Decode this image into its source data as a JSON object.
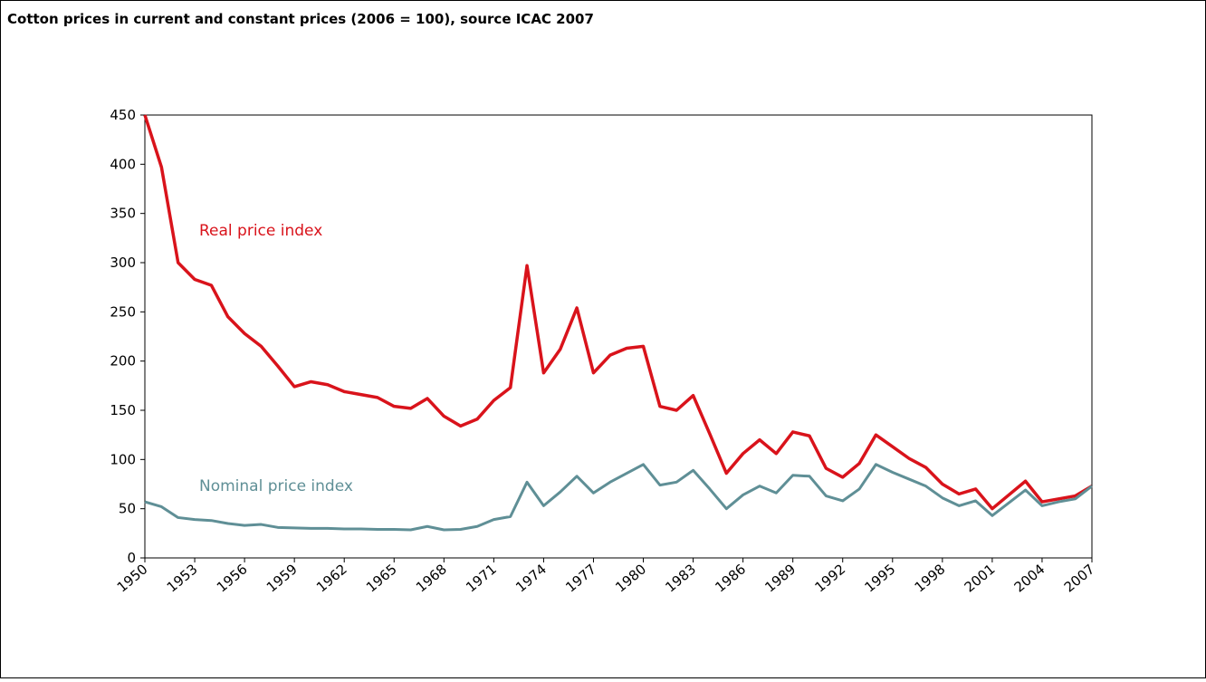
{
  "chart_data": {
    "type": "line",
    "title": "Cotton prices in current and constant prices (2006 = 100), source ICAC 2007",
    "x": [
      1950,
      1951,
      1952,
      1953,
      1954,
      1955,
      1956,
      1957,
      1958,
      1959,
      1960,
      1961,
      1962,
      1963,
      1964,
      1965,
      1966,
      1967,
      1968,
      1969,
      1970,
      1971,
      1972,
      1973,
      1974,
      1975,
      1976,
      1977,
      1978,
      1979,
      1980,
      1981,
      1982,
      1983,
      1984,
      1985,
      1986,
      1987,
      1988,
      1989,
      1990,
      1991,
      1992,
      1993,
      1994,
      1995,
      1996,
      1997,
      1998,
      1999,
      2000,
      2001,
      2002,
      2003,
      2004,
      2005,
      2006,
      2007
    ],
    "series": [
      {
        "name": "Real price index",
        "color": "#d9131b",
        "values": [
          450,
          397,
          300,
          283,
          277,
          245,
          228,
          215,
          195,
          174,
          179,
          176,
          169,
          166,
          163,
          154,
          152,
          162,
          144,
          134,
          141,
          160,
          173,
          297,
          188,
          212,
          254,
          188,
          206,
          213,
          215,
          154,
          150,
          165,
          126,
          86,
          106,
          120,
          106,
          128,
          124,
          91,
          82,
          96,
          125,
          113,
          101,
          92,
          75,
          65,
          70,
          50,
          64,
          78,
          57,
          60,
          63,
          73
        ]
      },
      {
        "name": "Nominal price index",
        "color": "#5f8f96",
        "values": [
          57,
          52,
          41,
          39,
          38,
          35,
          33,
          34,
          31,
          30.5,
          30,
          30,
          29.5,
          29.5,
          29,
          29,
          28.5,
          32,
          28.5,
          29,
          32,
          39,
          42,
          77,
          53,
          67,
          83,
          66,
          77,
          86,
          95,
          74,
          77,
          89,
          70,
          50,
          64,
          73,
          66,
          84,
          83,
          63,
          58,
          70,
          95,
          87,
          80,
          73,
          61,
          53,
          58,
          43,
          56,
          69,
          53,
          57,
          60,
          73
        ]
      }
    ],
    "xlim": [
      1950,
      2007
    ],
    "xticks": [
      1950,
      1953,
      1956,
      1959,
      1962,
      1965,
      1968,
      1971,
      1974,
      1977,
      1980,
      1983,
      1986,
      1989,
      1992,
      1995,
      1998,
      2001,
      2004,
      2007
    ],
    "ylim": [
      0,
      450
    ],
    "yticks": [
      0,
      50,
      100,
      150,
      200,
      250,
      300,
      350,
      400,
      450
    ],
    "grid": false
  }
}
